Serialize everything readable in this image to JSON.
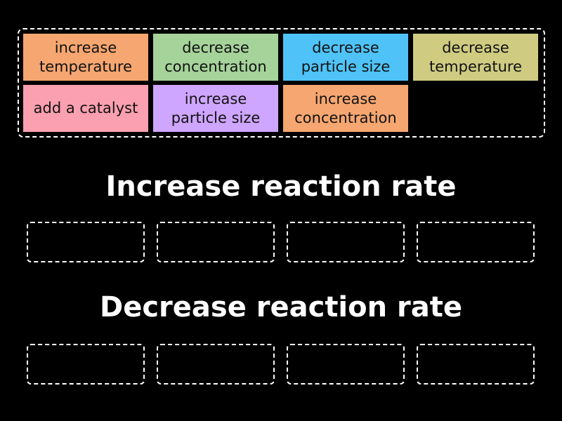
{
  "cards": [
    {
      "label": "increase temperature",
      "color": "#f6a670"
    },
    {
      "label": "decrease concentration",
      "color": "#a5d39a"
    },
    {
      "label": "decrease particle size",
      "color": "#4fc3f7"
    },
    {
      "label": "decrease temperature",
      "color": "#cfcc82"
    },
    {
      "label": "add a catalyst",
      "color": "#fba0b0"
    },
    {
      "label": "increase particle size",
      "color": "#cfa6ff"
    },
    {
      "label": "increase concentration",
      "color": "#f6a670"
    }
  ],
  "groups": [
    {
      "title": "Increase reaction rate"
    },
    {
      "title": "Decrease reaction rate"
    }
  ]
}
